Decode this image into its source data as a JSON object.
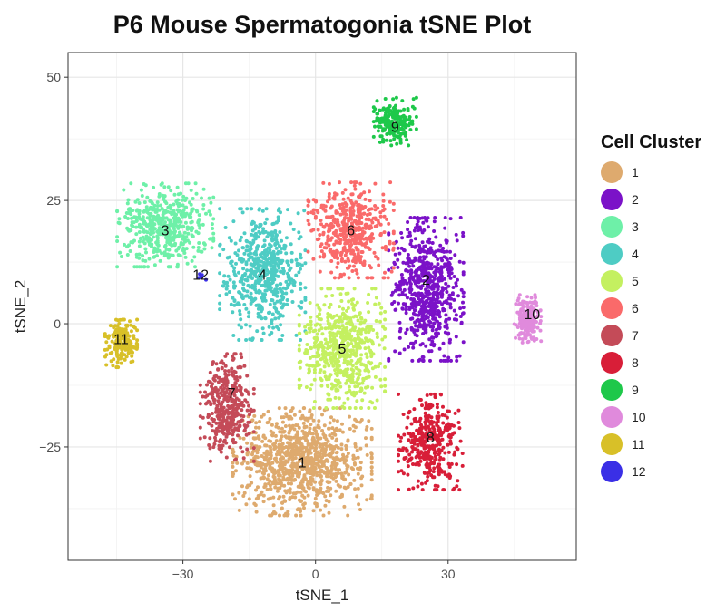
{
  "chart_data": {
    "type": "scatter",
    "title": "P6 Mouse Spermatogonia tSNE Plot",
    "xlabel": "tSNE_1",
    "ylabel": "tSNE_2",
    "xlim": [
      -56,
      59
    ],
    "ylim": [
      -48,
      55
    ],
    "xticks": [
      -30,
      0,
      30
    ],
    "yticks": [
      -25,
      0,
      25,
      50
    ],
    "grid": true,
    "legend_title": "Cell Cluster",
    "legend_position": "right",
    "clusters": [
      {
        "name": "1",
        "color": "#DEAA6E",
        "center": [
          -3,
          -28
        ],
        "spread": [
          13,
          9
        ],
        "count": 950
      },
      {
        "name": "2",
        "color": "#7B12C8",
        "center": [
          25,
          7
        ],
        "spread": [
          7,
          12
        ],
        "count": 650
      },
      {
        "name": "3",
        "color": "#6EF0A8",
        "center": [
          -34,
          20
        ],
        "spread": [
          9,
          7
        ],
        "count": 520
      },
      {
        "name": "4",
        "color": "#4ECCC4",
        "center": [
          -12,
          10
        ],
        "spread": [
          8,
          11
        ],
        "count": 560
      },
      {
        "name": "5",
        "color": "#C4F060",
        "center": [
          6,
          -5
        ],
        "spread": [
          8,
          10
        ],
        "count": 620
      },
      {
        "name": "6",
        "color": "#FA6A6A",
        "center": [
          8,
          19
        ],
        "spread": [
          8,
          8
        ],
        "count": 480
      },
      {
        "name": "7",
        "color": "#C44B58",
        "center": [
          -20,
          -17
        ],
        "spread": [
          5,
          9
        ],
        "count": 380
      },
      {
        "name": "8",
        "color": "#D81E38",
        "center": [
          26,
          -24
        ],
        "spread": [
          6,
          8
        ],
        "count": 380
      },
      {
        "name": "9",
        "color": "#1EC84A",
        "center": [
          18,
          41
        ],
        "spread": [
          4,
          4
        ],
        "count": 220
      },
      {
        "name": "10",
        "color": "#E08ADC",
        "center": [
          48,
          1
        ],
        "spread": [
          2.5,
          4
        ],
        "count": 200
      },
      {
        "name": "11",
        "color": "#D8C028",
        "center": [
          -44,
          -4
        ],
        "spread": [
          3,
          4
        ],
        "count": 180
      },
      {
        "name": "12",
        "color": "#3A2FE6",
        "center": [
          -26,
          10
        ],
        "spread": [
          1,
          1
        ],
        "count": 6
      }
    ],
    "cluster_labels": [
      {
        "text": "1",
        "x": -3,
        "y": -28
      },
      {
        "text": "2",
        "x": 25,
        "y": 9
      },
      {
        "text": "3",
        "x": -34,
        "y": 19
      },
      {
        "text": "4",
        "x": -12,
        "y": 10
      },
      {
        "text": "5",
        "x": 6,
        "y": -5
      },
      {
        "text": "6",
        "x": 8,
        "y": 19
      },
      {
        "text": "7",
        "x": -19,
        "y": -14
      },
      {
        "text": "8",
        "x": 26,
        "y": -23
      },
      {
        "text": "9",
        "x": 18,
        "y": 40
      },
      {
        "text": "10",
        "x": 49,
        "y": 2
      },
      {
        "text": "11",
        "x": -44,
        "y": -3
      },
      {
        "text": "12",
        "x": -26,
        "y": 10
      }
    ]
  }
}
